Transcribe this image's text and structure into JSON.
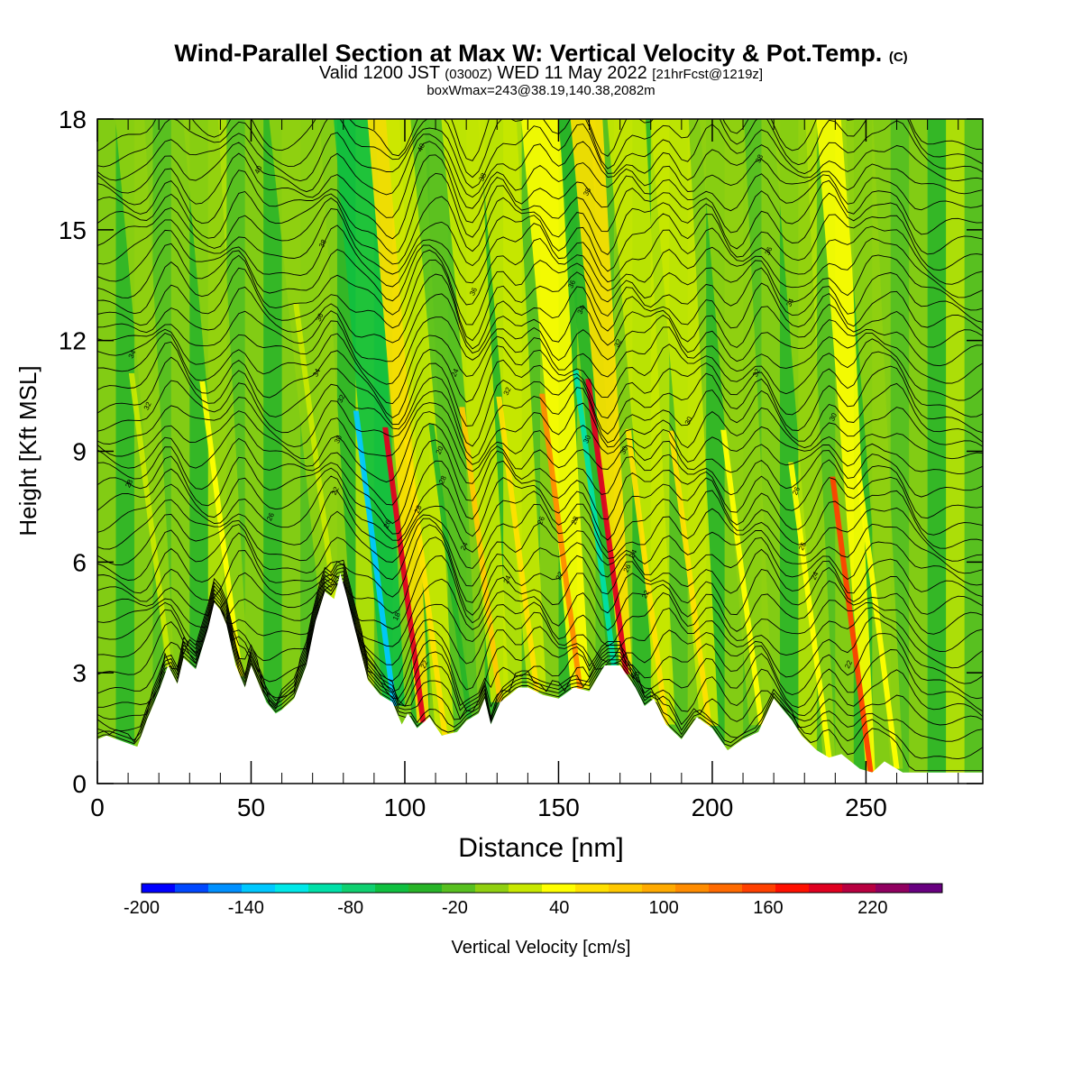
{
  "chart_data": {
    "type": "heatmap",
    "title": "Wind-Parallel Section at Max W: Vertical Velocity & Pot.Temp.",
    "title_tag": "(C)",
    "subtitle_valid": "Valid 1200 JST",
    "subtitle_utc": "(0300Z)",
    "subtitle_date": "WED 11 May 2022",
    "subtitle_fcst": "[21hrFcst@1219z]",
    "subtitle_box": "boxWmax=243@38.19,140.38,2082m",
    "xlabel": "Distance [nm]",
    "ylabel": "Height [Kft MSL]",
    "xlim": [
      0,
      288
    ],
    "ylim": [
      0,
      18
    ],
    "x_ticks": [
      "0",
      "50",
      "100",
      "150",
      "200",
      "250"
    ],
    "y_ticks": [
      "0",
      "3",
      "6",
      "9",
      "12",
      "15",
      "18"
    ],
    "colorbar": {
      "label": "Vertical Velocity [cm/s]",
      "min": -200,
      "max": 260,
      "step": 20,
      "tick_labels": [
        "-200",
        "-140",
        "-80",
        "-20",
        "40",
        "100",
        "160",
        "220"
      ],
      "colors": [
        "#0000ff",
        "#0048ff",
        "#0090ff",
        "#00c8ff",
        "#00e8e8",
        "#00e0a8",
        "#10d070",
        "#10c040",
        "#28b428",
        "#58c020",
        "#90d010",
        "#c8e800",
        "#ffff00",
        "#ffe000",
        "#ffc800",
        "#ffaa00",
        "#ff8c00",
        "#ff6a00",
        "#ff4000",
        "#ff1000",
        "#e00020",
        "#b80040",
        "#900060",
        "#680080"
      ]
    },
    "terrain_profile": {
      "x": [
        0,
        3,
        13,
        16,
        20,
        23,
        26,
        28,
        32,
        36,
        38,
        40,
        42,
        45,
        48,
        50,
        55,
        58,
        60,
        64,
        68,
        71,
        74,
        77,
        79,
        81,
        84,
        88,
        92,
        96,
        99,
        101,
        104,
        108,
        112,
        117,
        120,
        124,
        126,
        128,
        131,
        134,
        137,
        140,
        145,
        150,
        155,
        160,
        165,
        170,
        175,
        178,
        181,
        185,
        190,
        195,
        200,
        205,
        210,
        215,
        220,
        223,
        226,
        229,
        234,
        238,
        242,
        248,
        252,
        256,
        262,
        270,
        280,
        288
      ],
      "y": [
        1.2,
        1.3,
        1.0,
        1.7,
        2.5,
        3.2,
        2.7,
        3.4,
        3.1,
        4.2,
        4.9,
        4.7,
        4.3,
        3.2,
        2.6,
        3.2,
        2.2,
        1.9,
        2.0,
        2.3,
        3.2,
        4.4,
        5.2,
        5.0,
        5.7,
        5.1,
        4.1,
        2.8,
        2.4,
        2.2,
        1.6,
        1.9,
        1.5,
        1.8,
        1.3,
        1.4,
        1.7,
        1.9,
        2.3,
        1.6,
        2.2,
        2.4,
        2.6,
        2.6,
        2.4,
        2.3,
        2.6,
        2.5,
        3.2,
        3.2,
        2.6,
        2.1,
        2.3,
        1.6,
        1.2,
        1.8,
        1.5,
        0.9,
        1.2,
        1.4,
        2.3,
        2.0,
        1.7,
        1.3,
        0.9,
        0.7,
        0.8,
        0.4,
        0.3,
        0.6,
        0.3,
        0.3,
        0.3,
        0.3
      ]
    },
    "updraft_bands": [
      {
        "x0": 22,
        "x1": 25,
        "w": 20
      },
      {
        "x0": 44,
        "x1": 49,
        "w": 40
      },
      {
        "x0": 72,
        "x1": 82,
        "w": 30
      },
      {
        "x0": 93,
        "x1": 100,
        "w": -140
      },
      {
        "x0": 104,
        "x1": 108,
        "w": 200
      },
      {
        "x0": 110,
        "x1": 116,
        "w": 60
      },
      {
        "x0": 118,
        "x1": 124,
        "w": -40
      },
      {
        "x0": 128,
        "x1": 134,
        "w": 80
      },
      {
        "x0": 140,
        "x1": 146,
        "w": 60
      },
      {
        "x0": 154,
        "x1": 160,
        "w": 120
      },
      {
        "x0": 166,
        "x1": 170,
        "w": -100
      },
      {
        "x0": 170,
        "x1": 174,
        "w": 200
      },
      {
        "x0": 182,
        "x1": 188,
        "w": 60
      },
      {
        "x0": 196,
        "x1": 202,
        "w": 60
      },
      {
        "x0": 212,
        "x1": 220,
        "w": 40
      },
      {
        "x0": 236,
        "x1": 240,
        "w": 40
      },
      {
        "x0": 250,
        "x1": 253,
        "w": 160
      },
      {
        "x0": 258,
        "x1": 262,
        "w": 40
      }
    ],
    "theta_contour_labels": [
      {
        "label": "40",
        "x": 106,
        "y": 17.2
      },
      {
        "label": "40",
        "x": 53,
        "y": 16.6
      },
      {
        "label": "38",
        "x": 126,
        "y": 16.4
      },
      {
        "label": "38",
        "x": 160,
        "y": 16.0
      },
      {
        "label": "38",
        "x": 216,
        "y": 16.9
      },
      {
        "label": "38",
        "x": 74,
        "y": 14.6
      },
      {
        "label": "36",
        "x": 123,
        "y": 13.3
      },
      {
        "label": "36",
        "x": 155,
        "y": 13.5
      },
      {
        "label": "36",
        "x": 219,
        "y": 14.4
      },
      {
        "label": "34",
        "x": 158,
        "y": 12.8
      },
      {
        "label": "34",
        "x": 226,
        "y": 13.0
      },
      {
        "label": "36",
        "x": 73,
        "y": 12.6
      },
      {
        "label": "32",
        "x": 170,
        "y": 11.9
      },
      {
        "label": "34",
        "x": 12,
        "y": 11.6
      },
      {
        "label": "34",
        "x": 72,
        "y": 11.1
      },
      {
        "label": "24",
        "x": 117,
        "y": 11.1
      },
      {
        "label": "32",
        "x": 215,
        "y": 11.1
      },
      {
        "label": "32",
        "x": 80,
        "y": 10.4
      },
      {
        "label": "32",
        "x": 134,
        "y": 10.6
      },
      {
        "label": "32",
        "x": 17,
        "y": 10.2
      },
      {
        "label": "30",
        "x": 193,
        "y": 9.8
      },
      {
        "label": "30",
        "x": 240,
        "y": 9.9
      },
      {
        "label": "30",
        "x": 79,
        "y": 9.3
      },
      {
        "label": "30",
        "x": 160,
        "y": 9.3
      },
      {
        "label": "20",
        "x": 112,
        "y": 9.0
      },
      {
        "label": "30",
        "x": 172,
        "y": 9.0
      },
      {
        "label": "28",
        "x": 11,
        "y": 8.1
      },
      {
        "label": "28",
        "x": 113,
        "y": 8.2
      },
      {
        "label": "22",
        "x": 78,
        "y": 7.9
      },
      {
        "label": "26",
        "x": 228,
        "y": 7.9
      },
      {
        "label": "26",
        "x": 57,
        "y": 7.2
      },
      {
        "label": "28",
        "x": 105,
        "y": 7.4
      },
      {
        "label": "28",
        "x": 156,
        "y": 7.1
      },
      {
        "label": "26",
        "x": 145,
        "y": 7.1
      },
      {
        "label": "26",
        "x": 95,
        "y": 7.0
      },
      {
        "label": "24",
        "x": 120,
        "y": 6.4
      },
      {
        "label": "26",
        "x": 230,
        "y": 6.4
      },
      {
        "label": "24",
        "x": 175,
        "y": 6.2
      },
      {
        "label": "26",
        "x": 173,
        "y": 5.8
      },
      {
        "label": "24",
        "x": 134,
        "y": 5.5
      },
      {
        "label": "22",
        "x": 151,
        "y": 5.6
      },
      {
        "label": "24",
        "x": 234,
        "y": 5.6
      },
      {
        "label": "22",
        "x": 179,
        "y": 5.1
      },
      {
        "label": "18",
        "x": 98,
        "y": 4.5
      },
      {
        "label": "22",
        "x": 245,
        "y": 3.2
      },
      {
        "label": "22",
        "x": 107,
        "y": 3.2
      },
      {
        "label": "20",
        "x": 176,
        "y": 2.9
      }
    ]
  }
}
